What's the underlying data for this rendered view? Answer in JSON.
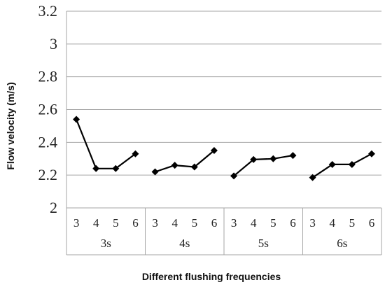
{
  "chart_data": {
    "type": "line",
    "title": "",
    "xlabel": "Different flushing frequencies",
    "ylabel": "Flow velocity (m/s)",
    "ylim": [
      2,
      3.2
    ],
    "y_ticks": [
      "2",
      "2.2",
      "2.4",
      "2.6",
      "2.8",
      "3",
      "3.2"
    ],
    "grid": true,
    "legend": "none",
    "groups": [
      {
        "label": "3s",
        "x": [
          "3",
          "4",
          "5",
          "6"
        ],
        "values": [
          2.54,
          2.24,
          2.24,
          2.33
        ]
      },
      {
        "label": "4s",
        "x": [
          "3",
          "4",
          "5",
          "6"
        ],
        "values": [
          2.22,
          2.26,
          2.25,
          2.35
        ]
      },
      {
        "label": "5s",
        "x": [
          "3",
          "4",
          "5",
          "6"
        ],
        "values": [
          2.195,
          2.295,
          2.3,
          2.32
        ]
      },
      {
        "label": "6s",
        "x": [
          "3",
          "4",
          "5",
          "6"
        ],
        "values": [
          2.185,
          2.265,
          2.265,
          2.33
        ]
      }
    ],
    "colors": {
      "line": "#000000",
      "grid": "#a6a6a6",
      "axis": "#a6a6a6"
    }
  }
}
